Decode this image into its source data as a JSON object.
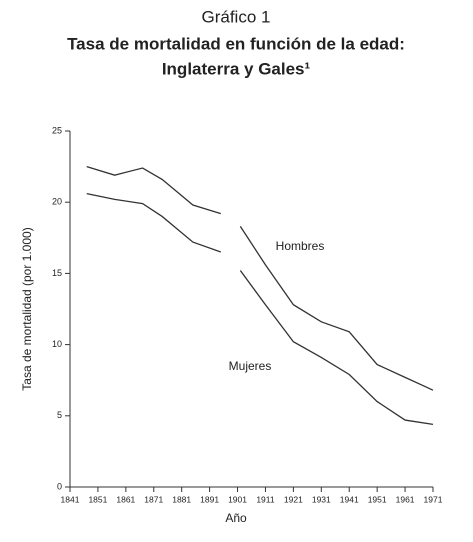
{
  "chart_data": {
    "type": "line",
    "supertitle": "Gráfico 1",
    "title": [
      "Tasa de mortalidad en función de la edad:",
      "Inglaterra y Gales¹"
    ],
    "xlabel": "Año",
    "ylabel": "Tasa de mortalidad (por 1.000)",
    "x": [
      1847,
      1857,
      1867,
      1874,
      1885,
      1895,
      1898,
      1902,
      1911,
      1921,
      1931,
      1941,
      1951,
      1961,
      1971
    ],
    "series": [
      {
        "name": "Hombres",
        "color": "#333333",
        "values": [
          22.5,
          21.9,
          22.4,
          21.6,
          19.8,
          19.2,
          null,
          18.3,
          15.6,
          12.8,
          11.6,
          10.9,
          8.6,
          7.7,
          6.8
        ]
      },
      {
        "name": "Mujeres",
        "color": "#333333",
        "values": [
          20.6,
          20.2,
          19.9,
          19.0,
          17.2,
          16.5,
          null,
          15.2,
          12.8,
          10.2,
          9.1,
          7.9,
          6.0,
          4.7,
          4.4
        ]
      }
    ],
    "xlim": [
      1841,
      1971
    ],
    "xticks": [
      1841,
      1851,
      1861,
      1871,
      1881,
      1891,
      1901,
      1911,
      1921,
      1931,
      1941,
      1951,
      1961,
      1971
    ],
    "ylim": [
      0,
      25
    ],
    "yticks": [
      0,
      5,
      10,
      15,
      20,
      25
    ],
    "grid": false
  }
}
